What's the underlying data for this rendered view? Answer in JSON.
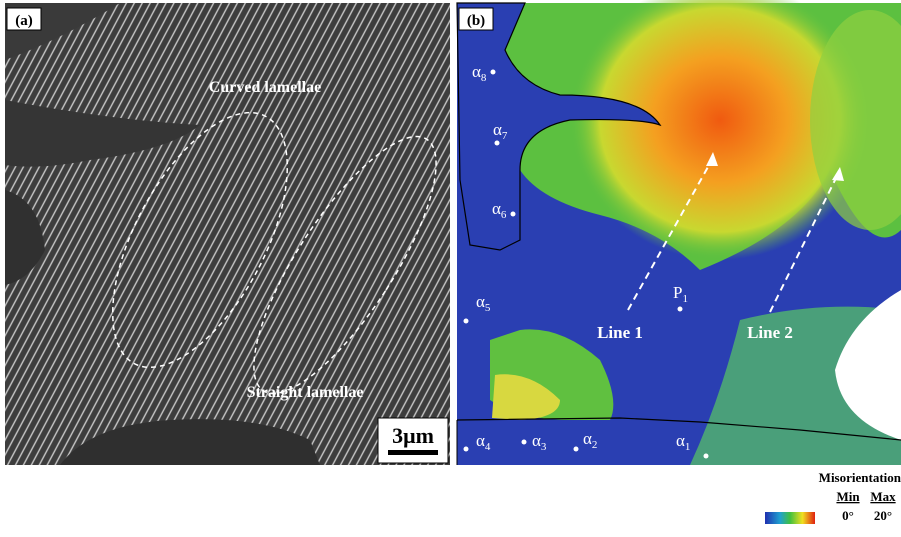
{
  "panel_a": {
    "label": "(a)",
    "annotations": [
      "Curved lamellae",
      "Straight lamellae"
    ],
    "scale_bar": "3μm"
  },
  "panel_b": {
    "label": "(b)",
    "phases": [
      {
        "base": "α",
        "sub": "8"
      },
      {
        "base": "α",
        "sub": "7"
      },
      {
        "base": "α",
        "sub": "6"
      },
      {
        "base": "α",
        "sub": "5"
      },
      {
        "base": "α",
        "sub": "4"
      },
      {
        "base": "α",
        "sub": "3"
      },
      {
        "base": "α",
        "sub": "2"
      },
      {
        "base": "α",
        "sub": "1"
      }
    ],
    "point": {
      "base": "P",
      "sub": "1"
    },
    "lines": [
      "Line 1",
      "Line 2"
    ]
  },
  "legend": {
    "title": "Misorientation",
    "min_label": "Min",
    "max_label": "Max",
    "min_value": "0°",
    "max_value": "20°"
  }
}
